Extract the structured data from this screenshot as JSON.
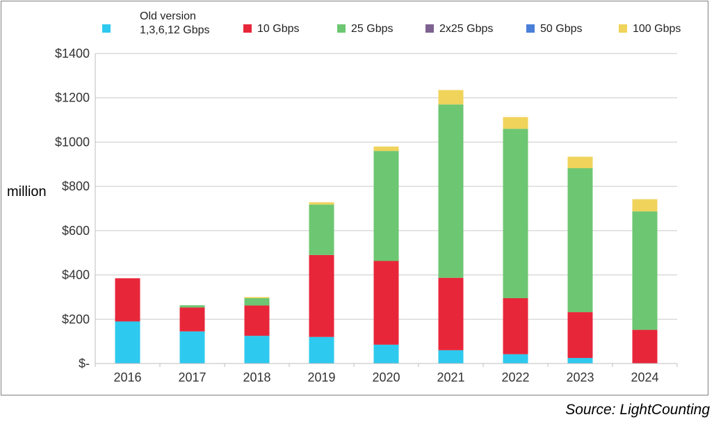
{
  "chart_data": {
    "type": "bar",
    "stacked": true,
    "ylabel": "million",
    "source": "Source:  LightCounting",
    "ylim": [
      0,
      1400
    ],
    "yticks": [
      0,
      200,
      400,
      600,
      800,
      1000,
      1200,
      1400
    ],
    "ytick_labels": [
      "$-",
      "$200",
      "$400",
      "$600",
      "$800",
      "$1000",
      "$1200",
      "$1400"
    ],
    "categories": [
      "2016",
      "2017",
      "2018",
      "2019",
      "2020",
      "2021",
      "2022",
      "2023",
      "2024"
    ],
    "legend_position": "top",
    "grid": true,
    "series": [
      {
        "name": "Old version 1,3,6,12 Gbps",
        "legend_line1": "Old version",
        "legend_line2": "1,3,6,12 Gbps",
        "color": "#2ec9ee",
        "values": [
          190,
          145,
          125,
          120,
          85,
          60,
          42,
          25,
          0
        ]
      },
      {
        "name": "10 Gbps",
        "color": "#e8263a",
        "values": [
          195,
          108,
          137,
          370,
          378,
          327,
          253,
          207,
          152
        ]
      },
      {
        "name": "25 Gbps",
        "color": "#6dc671",
        "values": [
          0,
          10,
          33,
          228,
          497,
          783,
          765,
          650,
          535
        ]
      },
      {
        "name": "2x25 Gbps",
        "color": "#7e6191",
        "values": [
          0,
          0,
          0,
          0,
          0,
          0,
          0,
          0,
          0
        ]
      },
      {
        "name": "50 Gbps",
        "color": "#4a7fd9",
        "values": [
          0,
          0,
          0,
          0,
          0,
          0,
          0,
          0,
          0
        ]
      },
      {
        "name": "100 Gbps",
        "color": "#f0d35b",
        "values": [
          0,
          0,
          5,
          10,
          20,
          65,
          53,
          52,
          55
        ]
      }
    ]
  }
}
